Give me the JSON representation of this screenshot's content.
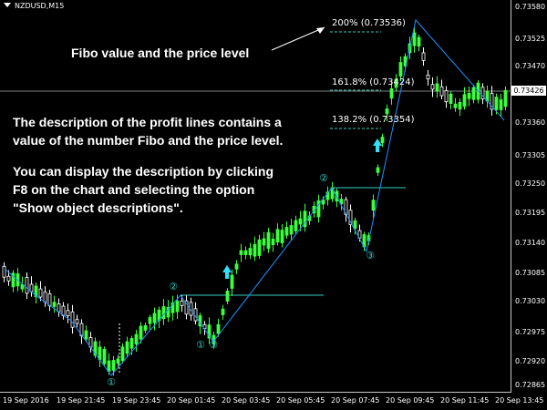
{
  "chart": {
    "symbol": "NZDUSD,M15",
    "current_price": "0.73426",
    "colors": {
      "bull": "#3cff3c",
      "bear": "#ffffff",
      "zigzag": "#1e90ff",
      "levels": "#2fd0c0",
      "grid": "#808080"
    }
  },
  "annotations": {
    "fibo_label": "Fibo value and the price level",
    "description_lines": [
      "The description of the profit lines contains a",
      "value of the number Fibo and the price level."
    ],
    "instructions_lines": [
      "You can display the description by clicking",
      "F8 on the chart and selecting the option",
      "\"Show object descriptions\"."
    ]
  },
  "fibo_levels": [
    {
      "label": "200% (0.73536)"
    },
    {
      "label": "161.8% (0.73424)"
    },
    {
      "label": "138.2% (0.73354)"
    }
  ],
  "wave_markers": [
    "①",
    "②",
    "①",
    "③",
    "②",
    "③"
  ],
  "y_axis": [
    "0.73580",
    "0.73525",
    "0.73470",
    "0.73415",
    "0.73360",
    "0.73305",
    "0.73250",
    "0.73195",
    "0.73140",
    "0.73085",
    "0.73030",
    "0.72975",
    "0.72920",
    "0.72865"
  ],
  "x_axis": [
    "19 Sep 2016",
    "19 Sep 21:45",
    "19 Sep 23:45",
    "20 Sep 01:45",
    "20 Sep 03:45",
    "20 Sep 05:45",
    "20 Sep 07:45",
    "20 Sep 09:45",
    "20 Sep 11:45",
    "20 Sep 13:45"
  ]
}
